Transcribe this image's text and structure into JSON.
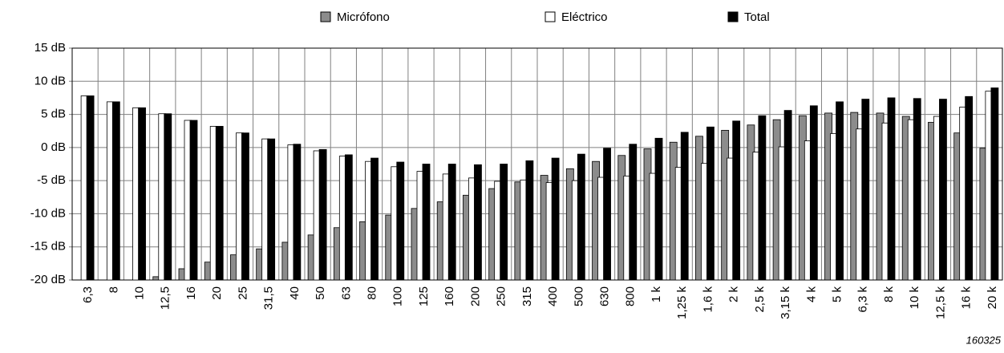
{
  "chart_data": {
    "type": "bar",
    "categories": [
      "6,3",
      "8",
      "10",
      "12,5",
      "16",
      "20",
      "25",
      "31,5",
      "40",
      "50",
      "63",
      "80",
      "100",
      "125",
      "160",
      "200",
      "250",
      "315",
      "400",
      "500",
      "630",
      "800",
      "1 k",
      "1,25 k",
      "1,6 k",
      "2 k",
      "2,5 k",
      "3,15 k",
      "4 k",
      "5 k",
      "6,3 k",
      "8 k",
      "10 k",
      "12,5 k",
      "16 k",
      "20 k"
    ],
    "series": [
      {
        "name": "Micrófono",
        "color": "#8c8c8c",
        "values": [
          null,
          null,
          null,
          -19.5,
          -18.3,
          -17.3,
          -16.2,
          -15.3,
          -14.3,
          -13.2,
          -12.1,
          -11.2,
          -10.2,
          -9.2,
          -8.2,
          -7.2,
          -6.2,
          -5.2,
          -4.2,
          -3.2,
          -2.1,
          -1.2,
          -0.2,
          0.8,
          1.7,
          2.6,
          3.4,
          4.2,
          4.8,
          5.2,
          5.3,
          5.2,
          4.7,
          3.8,
          2.2,
          -0.1
        ]
      },
      {
        "name": "Eléctrico",
        "color": "#ffffff",
        "values": [
          7.8,
          6.9,
          6.0,
          5.1,
          4.1,
          3.2,
          2.2,
          1.3,
          0.4,
          -0.5,
          -1.3,
          -2.1,
          -2.9,
          -3.6,
          -4.0,
          -4.6,
          -5.1,
          -4.9,
          -5.3,
          -5.0,
          -4.5,
          -4.3,
          -3.9,
          -3.0,
          -2.4,
          -1.6,
          -0.7,
          0.1,
          1.0,
          2.1,
          2.8,
          3.7,
          4.2,
          4.7,
          6.1,
          8.5
        ]
      },
      {
        "name": "Total",
        "color": "#000000",
        "values": [
          7.8,
          6.9,
          6.0,
          5.1,
          4.1,
          3.2,
          2.2,
          1.3,
          0.5,
          -0.3,
          -1.1,
          -1.6,
          -2.2,
          -2.5,
          -2.5,
          -2.6,
          -2.5,
          -2.0,
          -1.6,
          -1.0,
          -0.1,
          0.5,
          1.4,
          2.3,
          3.1,
          4.0,
          4.8,
          5.6,
          6.3,
          6.9,
          7.3,
          7.5,
          7.4,
          7.3,
          7.7,
          9.0
        ]
      }
    ],
    "ylim": [
      -20,
      15
    ],
    "yticks": [
      {
        "value": -20,
        "label": "-20 dB"
      },
      {
        "value": -15,
        "label": "-15 dB"
      },
      {
        "value": -10,
        "label": "-10 dB"
      },
      {
        "value": -5,
        "label": "-5 dB"
      },
      {
        "value": 0,
        "label": "0 dB"
      },
      {
        "value": 5,
        "label": "5 dB"
      },
      {
        "value": 10,
        "label": "10 dB"
      },
      {
        "value": 15,
        "label": "15 dB"
      }
    ],
    "grid": true,
    "legend": "top",
    "annotation": "160325"
  }
}
